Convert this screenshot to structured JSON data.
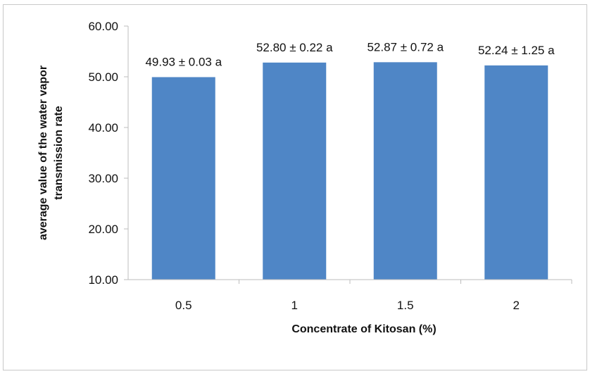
{
  "chart_data": {
    "type": "bar",
    "categories": [
      "0.5",
      "1",
      "1.5",
      "2"
    ],
    "values": [
      49.93,
      52.8,
      52.87,
      52.24
    ],
    "data_labels": [
      "49.93 ± 0.03 a",
      "52.80 ± 0.22 a",
      "52.87 ± 0.72 a",
      "52.24 ± 1.25 a"
    ],
    "title": "",
    "xlabel": "Concentrate of Kitosan (%)",
    "ylabel_lines": [
      "average value of the water vapor",
      "transmission rate"
    ],
    "ylim": [
      10,
      60
    ],
    "yticks": [
      "10.00",
      "20.00",
      "30.00",
      "40.00",
      "50.00",
      "60.00"
    ],
    "bar_color": "#4f86c6",
    "grid": false,
    "legend": "none"
  }
}
